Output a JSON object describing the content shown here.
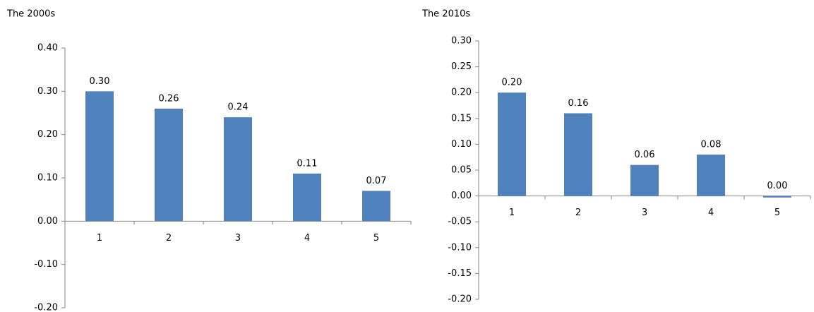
{
  "chart_data": [
    {
      "type": "bar",
      "title": "The 2000s",
      "categories": [
        "1",
        "2",
        "3",
        "4",
        "5"
      ],
      "values": [
        0.3,
        0.26,
        0.24,
        0.11,
        0.07
      ],
      "value_labels": [
        "0.30",
        "0.26",
        "0.24",
        "0.11",
        "0.07"
      ],
      "color": "#4f81bd",
      "ylim": [
        -0.2,
        0.4
      ],
      "yticks": [
        {
          "value": -0.2,
          "label": "-0.20"
        },
        {
          "value": -0.1,
          "label": "-0.10"
        },
        {
          "value": 0,
          "label": "0.00"
        },
        {
          "value": 0.1,
          "label": "0.10"
        },
        {
          "value": 0.2,
          "label": "0.20"
        },
        {
          "value": 0.3,
          "label": "0.30"
        },
        {
          "value": 0.4,
          "label": "0.40"
        }
      ],
      "grid": false
    },
    {
      "type": "bar",
      "title": "The 2010s",
      "categories": [
        "1",
        "2",
        "3",
        "4",
        "5"
      ],
      "values": [
        0.2,
        0.16,
        0.06,
        0.08,
        -0.003
      ],
      "value_labels": [
        "0.20",
        "0.16",
        "0.06",
        "0.08",
        "0.00"
      ],
      "color": "#4f81bd",
      "ylim": [
        -0.2,
        0.3
      ],
      "yticks": [
        {
          "value": -0.2,
          "label": "-0.20"
        },
        {
          "value": -0.15,
          "label": "-0.15"
        },
        {
          "value": -0.1,
          "label": "-0.10"
        },
        {
          "value": -0.05,
          "label": "-0.05"
        },
        {
          "value": 0,
          "label": "0.00"
        },
        {
          "value": 0.05,
          "label": "0.05"
        },
        {
          "value": 0.1,
          "label": "0.10"
        },
        {
          "value": 0.15,
          "label": "0.15"
        },
        {
          "value": 0.2,
          "label": "0.20"
        },
        {
          "value": 0.25,
          "label": "0.25"
        },
        {
          "value": 0.3,
          "label": "0.30"
        }
      ],
      "grid": false
    }
  ]
}
